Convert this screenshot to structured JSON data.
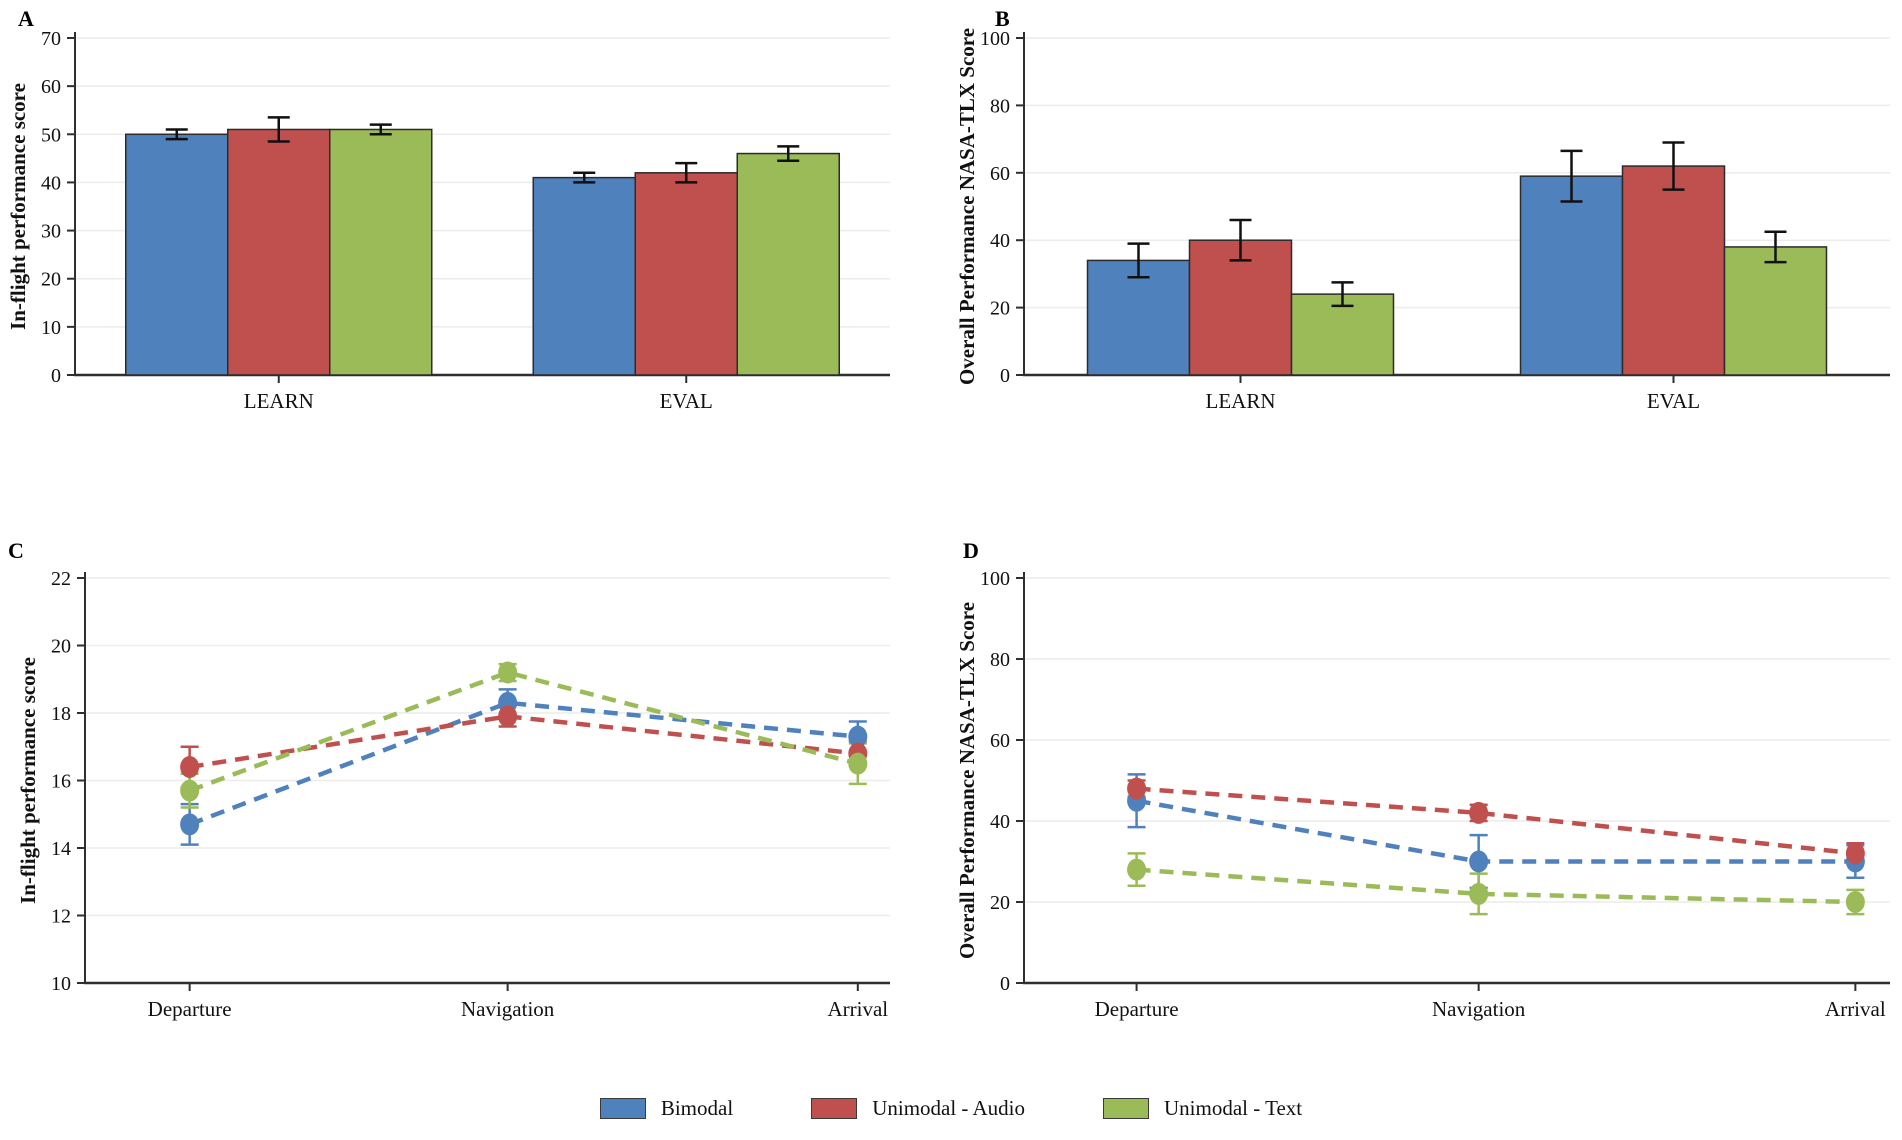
{
  "figure": {
    "background": "#ffffff",
    "text_color": "#111111",
    "axis_color": "#2f2f2f",
    "grid_color": "#ececec",
    "bar_outline_color": "#2b2b2b",
    "error_bar_color": "#111111"
  },
  "chart_data": [
    {
      "panel_label": "A",
      "type": "bar",
      "ylabel": "In-flight performance score",
      "xlabel": "",
      "ylim": [
        0,
        70
      ],
      "ytick_step": 10,
      "grid": true,
      "categories": [
        "LEARN",
        "EVAL"
      ],
      "series": [
        {
          "name": "Bimodal",
          "color": "#4F81BD",
          "values": [
            50,
            41
          ],
          "errors": [
            1,
            1
          ]
        },
        {
          "name": "Unimodal - Audio",
          "color": "#C0504D",
          "values": [
            51,
            42
          ],
          "errors": [
            2.5,
            2
          ]
        },
        {
          "name": "Unimodal - Text",
          "color": "#9BBB59",
          "values": [
            51,
            46
          ],
          "errors": [
            1,
            1.5
          ]
        }
      ]
    },
    {
      "panel_label": "B",
      "type": "bar",
      "ylabel": "Overall Performance NASA-TLX Score",
      "xlabel": "",
      "ylim": [
        0,
        100
      ],
      "ytick_step": 20,
      "grid": true,
      "categories": [
        "LEARN",
        "EVAL"
      ],
      "series": [
        {
          "name": "Bimodal",
          "color": "#4F81BD",
          "values": [
            34,
            59
          ],
          "errors": [
            5,
            7.5
          ]
        },
        {
          "name": "Unimodal - Audio",
          "color": "#C0504D",
          "values": [
            40,
            62
          ],
          "errors": [
            6,
            7
          ]
        },
        {
          "name": "Unimodal - Text",
          "color": "#9BBB59",
          "values": [
            24,
            38
          ],
          "errors": [
            3.5,
            4.5
          ]
        }
      ]
    },
    {
      "panel_label": "C",
      "type": "line",
      "ylabel": "In-flight performance score",
      "xlabel": "",
      "ylim": [
        10,
        22
      ],
      "ytick_step": 2,
      "grid": true,
      "line_style": "dashed",
      "categories": [
        "Departure",
        "Navigation",
        "Arrival"
      ],
      "series": [
        {
          "name": "Bimodal",
          "color": "#4F81BD",
          "values": [
            14.7,
            18.3,
            17.3
          ],
          "errors": [
            0.6,
            0.4,
            0.45
          ]
        },
        {
          "name": "Unimodal - Audio",
          "color": "#C0504D",
          "values": [
            16.4,
            17.9,
            16.8
          ],
          "errors": [
            0.6,
            0.3,
            0.35
          ]
        },
        {
          "name": "Unimodal - Text",
          "color": "#9BBB59",
          "values": [
            15.7,
            19.2,
            16.5
          ],
          "errors": [
            0.5,
            0.25,
            0.6
          ]
        }
      ]
    },
    {
      "panel_label": "D",
      "type": "line",
      "ylabel": "Overall Performance NASA-TLX Score",
      "xlabel": "",
      "ylim": [
        0,
        100
      ],
      "ytick_step": 20,
      "grid": true,
      "line_style": "dashed",
      "categories": [
        "Departure",
        "Navigation",
        "Arrival"
      ],
      "series": [
        {
          "name": "Bimodal",
          "color": "#4F81BD",
          "values": [
            45,
            30,
            30
          ],
          "errors": [
            6.5,
            6.5,
            4
          ]
        },
        {
          "name": "Unimodal - Audio",
          "color": "#C0504D",
          "values": [
            48,
            42,
            32
          ],
          "errors": [
            2,
            2,
            2.5
          ]
        },
        {
          "name": "Unimodal - Text",
          "color": "#9BBB59",
          "values": [
            28,
            22,
            20
          ],
          "errors": [
            4,
            5,
            3
          ]
        }
      ]
    }
  ],
  "legend": [
    {
      "label": "Bimodal",
      "color": "#4F81BD"
    },
    {
      "label": "Unimodal - Audio",
      "color": "#C0504D"
    },
    {
      "label": "Unimodal - Text",
      "color": "#9BBB59"
    }
  ]
}
